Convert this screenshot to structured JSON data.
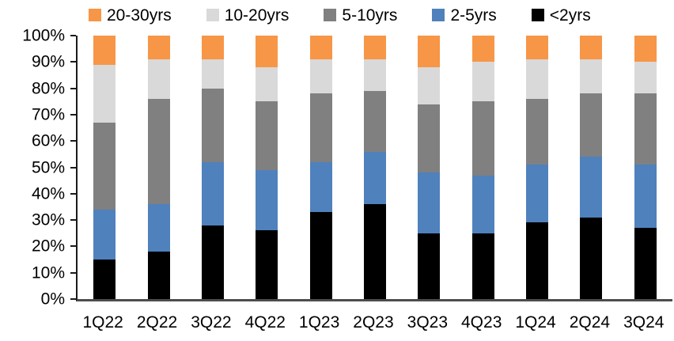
{
  "chart_data": {
    "type": "bar",
    "stacked": true,
    "percent_stacked": true,
    "title": "",
    "xlabel": "",
    "ylabel": "",
    "grid": false,
    "categories": [
      "1Q22",
      "2Q22",
      "3Q22",
      "4Q22",
      "1Q23",
      "2Q23",
      "3Q23",
      "4Q23",
      "1Q24",
      "2Q24",
      "3Q24"
    ],
    "series": [
      {
        "name": "<2yrs",
        "color": "#000000",
        "values": [
          15,
          18,
          28,
          26,
          33,
          36,
          25,
          25,
          29,
          31,
          27
        ]
      },
      {
        "name": "2-5yrs",
        "color": "#4F81BD",
        "values": [
          19,
          18,
          24,
          23,
          19,
          20,
          23,
          22,
          22,
          23,
          24
        ]
      },
      {
        "name": "5-10yrs",
        "color": "#808080",
        "values": [
          33,
          40,
          28,
          26,
          26,
          23,
          26,
          28,
          25,
          24,
          27
        ]
      },
      {
        "name": "10-20yrs",
        "color": "#D9D9D9",
        "values": [
          22,
          15,
          11,
          13,
          13,
          12,
          14,
          15,
          15,
          13,
          12
        ]
      },
      {
        "name": "20-30yrs",
        "color": "#F79646",
        "values": [
          11,
          9,
          9,
          12,
          9,
          9,
          12,
          10,
          9,
          9,
          10
        ]
      }
    ],
    "legend": {
      "position": "top",
      "order": [
        "20-30yrs",
        "10-20yrs",
        "5-10yrs",
        "2-5yrs",
        "<2yrs"
      ]
    },
    "y_axis": {
      "min": 0,
      "max": 100,
      "tick_step": 10,
      "tick_labels": [
        "0%",
        "10%",
        "20%",
        "30%",
        "40%",
        "50%",
        "60%",
        "70%",
        "80%",
        "90%",
        "100%"
      ]
    },
    "axis_color": "#1a1a1a"
  }
}
